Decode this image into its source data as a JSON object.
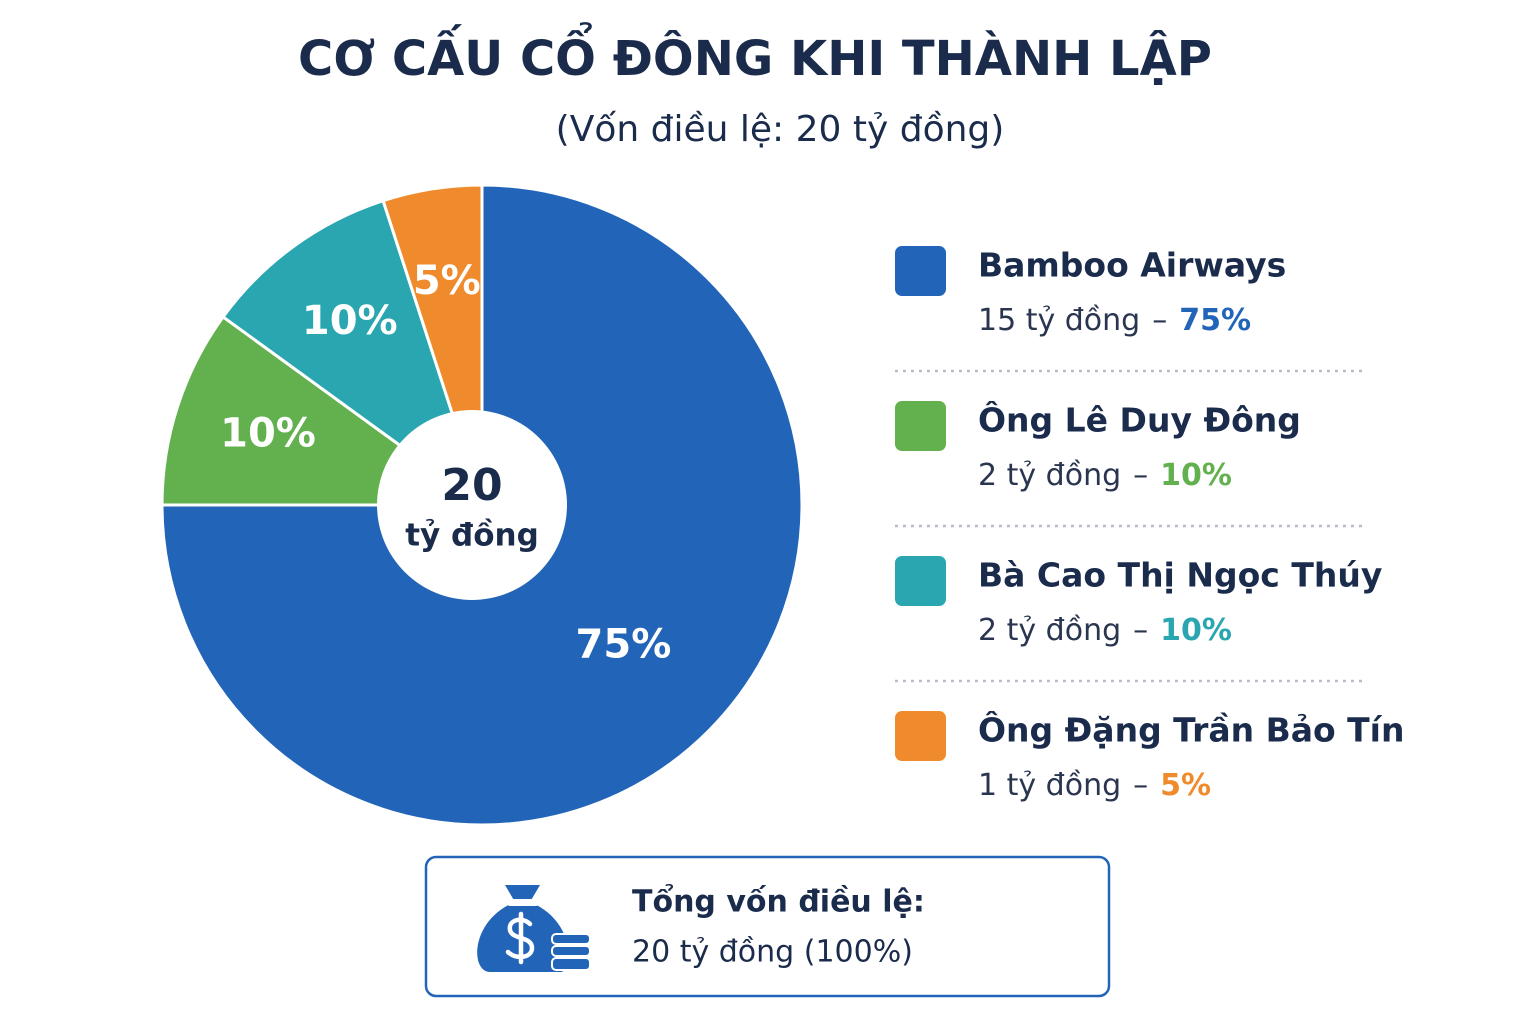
{
  "chart_data": {
    "type": "pie",
    "title": "CƠ CẤU CỔ ĐÔNG KHI THÀNH LẬP",
    "subtitle": "(Vốn điều lệ: 20 tỷ đồng)",
    "categories": [
      "Bamboo Airways",
      "Ông Lê Duy Đông",
      "Bà Cao Thị Ngọc Thúy",
      "Ông Đặng Trần Bảo Tín"
    ],
    "values": [
      75,
      10,
      10,
      5
    ],
    "value_labels": [
      "75%",
      "10%",
      "10%",
      "5%"
    ],
    "colors": [
      "#2265b8",
      "#63b04f",
      "#2aa6b1",
      "#ef8b2c"
    ],
    "amount_labels": [
      "15 tỷ đồng",
      "2 tỷ đồng",
      "2 tỷ đồng",
      "1 tỷ đồng"
    ],
    "separator": "–",
    "center_value": 20,
    "center_unit": "tỷ đồng",
    "legend": "right",
    "summary": {
      "title": "Tổng vốn điều lệ:",
      "text": "20 tỷ đồng (100%)"
    }
  }
}
